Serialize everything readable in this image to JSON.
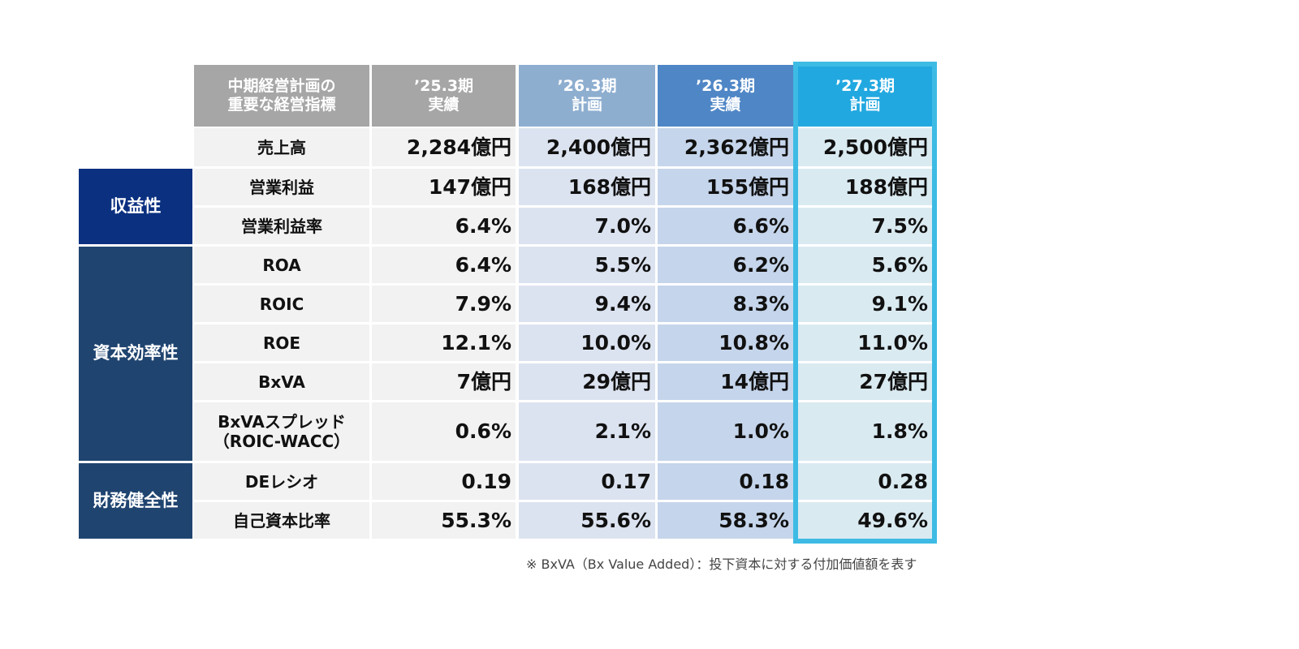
{
  "table": {
    "header": [
      "中期経営計画の\n重要な経営指標",
      "’25.3期\n実績",
      "’26.3期\n計画",
      "’26.3期\n実績",
      "’27.3期\n計画"
    ],
    "top_row": {
      "label": "売上高",
      "values": [
        "2,284億円",
        "2,400億円",
        "2,362億円",
        "2,500億円"
      ]
    },
    "groups": [
      {
        "label": "収益性",
        "rows": [
          {
            "label": "営業利益",
            "values": [
              "147億円",
              "168億円",
              "155億円",
              "188億円"
            ]
          },
          {
            "label": "営業利益率",
            "values": [
              "6.4%",
              "7.0%",
              "6.6%",
              "7.5%"
            ]
          }
        ]
      },
      {
        "label": "資本効率性",
        "rows": [
          {
            "label": "ROA",
            "values": [
              "6.4%",
              "5.5%",
              "6.2%",
              "5.6%"
            ]
          },
          {
            "label": "ROIC",
            "values": [
              "7.9%",
              "9.4%",
              "8.3%",
              "9.1%"
            ]
          },
          {
            "label": "ROE",
            "values": [
              "12.1%",
              "10.0%",
              "10.8%",
              "11.0%"
            ]
          },
          {
            "label": "BxVA",
            "values": [
              "7億円",
              "29億円",
              "14億円",
              "27億円"
            ]
          },
          {
            "label": "BxVAスプレッド\n（ROIC-WACC）",
            "values": [
              "0.6%",
              "2.1%",
              "1.0%",
              "1.8%"
            ]
          }
        ]
      },
      {
        "label": "財務健全性",
        "rows": [
          {
            "label": "DEレシオ",
            "values": [
              "0.19",
              "0.17",
              "0.18",
              "0.28"
            ]
          },
          {
            "label": "自己資本比率",
            "values": [
              "55.3%",
              "55.6%",
              "58.3%",
              "49.6%"
            ]
          }
        ]
      }
    ]
  },
  "note": "※ BxVA（Bx Value Added）：投下資本に対する付加価値額を表す"
}
